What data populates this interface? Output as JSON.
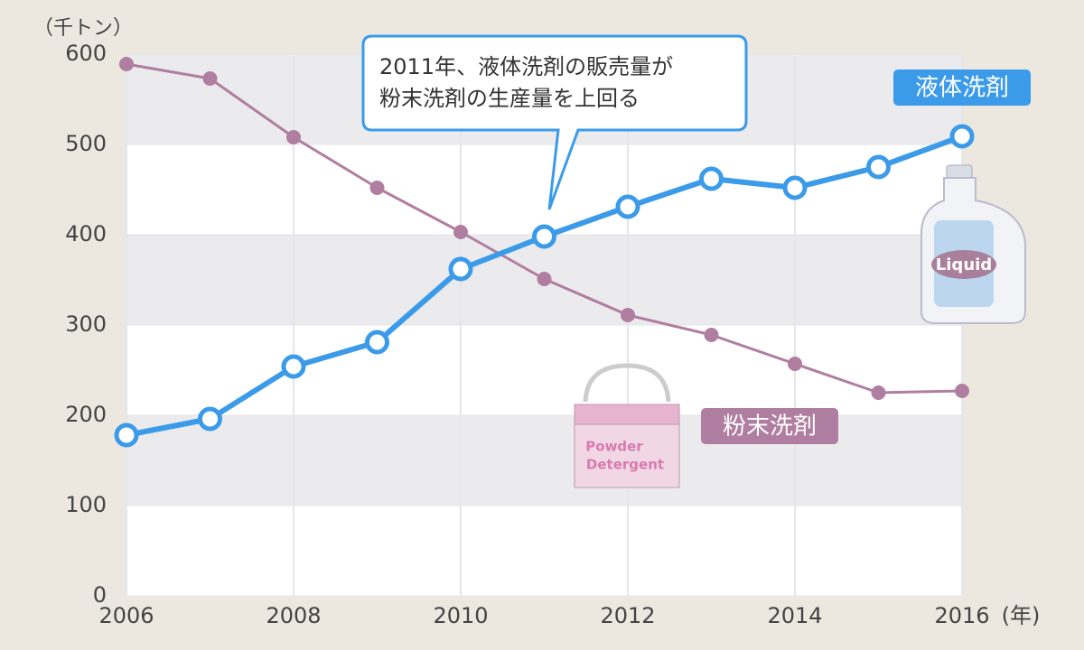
{
  "chart_data": {
    "type": "line",
    "y_label": "（千トン）",
    "x_label": "(年)",
    "x": [
      2006,
      2007,
      2008,
      2009,
      2010,
      2011,
      2012,
      2013,
      2014,
      2015,
      2016
    ],
    "series": [
      {
        "name": "液体洗剤",
        "color": "#3b9be9",
        "values": [
          178,
          196,
          254,
          281,
          362,
          398,
          431,
          462,
          452,
          475,
          509
        ]
      },
      {
        "name": "粉末洗剤",
        "color": "#b07ea0",
        "values": [
          589,
          573,
          508,
          452,
          403,
          351,
          311,
          289,
          257,
          225,
          227
        ]
      }
    ],
    "xlim": [
      2006,
      2016
    ],
    "xticks": [
      2006,
      2008,
      2010,
      2012,
      2014,
      2016
    ],
    "ylim": [
      0,
      600
    ],
    "yticks": [
      0,
      100,
      200,
      300,
      400,
      500,
      600
    ],
    "grid": true,
    "annotation": [
      "2011年、液体洗剤の販売量が",
      "粉末洗剤の生産量を上回る"
    ],
    "illustration_labels": [
      "Liquid",
      "Powder",
      "Detergent"
    ]
  }
}
